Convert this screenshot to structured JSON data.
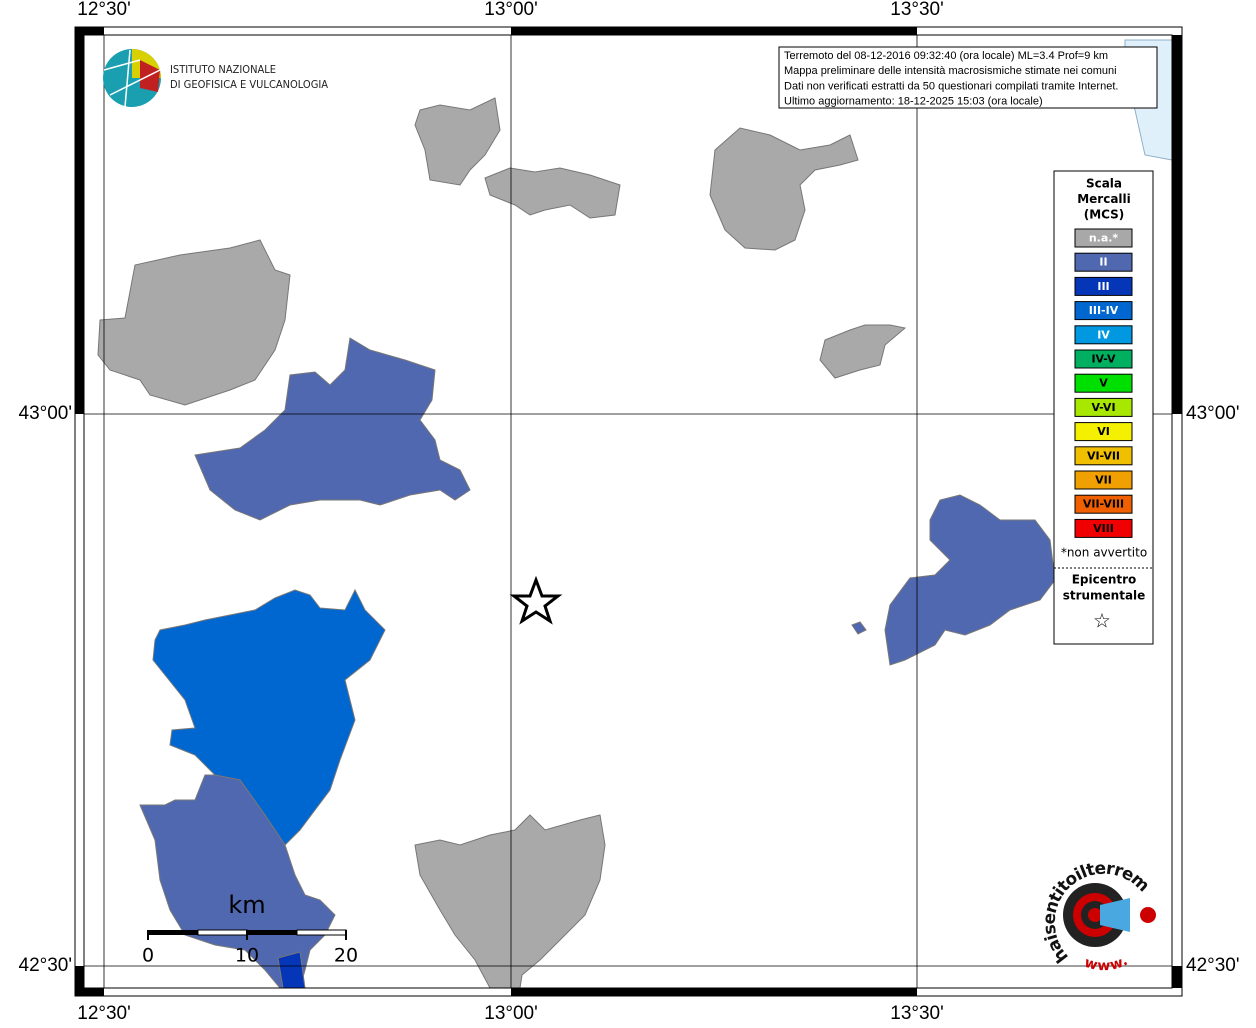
{
  "map": {
    "lon_labels": [
      "12°30'",
      "13°00'",
      "13°30'"
    ],
    "lat_labels": [
      "43°00'",
      "42°30'"
    ],
    "institute": [
      "ISTITUTO NAZIONALE",
      "DI GEOFISICA E VULCANOLOGIA"
    ],
    "info": [
      "Terremoto del 08-12-2016 09:32:40 (ora locale) ML=3.4 Prof=9 km",
      "Mappa preliminare delle intensità macrosismiche stimate nei comuni",
      "Dati non verificati estratti da 50 questionari compilati tramite Internet.",
      "Ultimo aggiornamento: 18-12-2025 15:03 (ora locale)"
    ],
    "legend": {
      "title": [
        "Scala",
        "Mercalli",
        "(MCS)"
      ],
      "classes": [
        {
          "label": "n.a.*",
          "color": "#a8a8a8"
        },
        {
          "label": "II",
          "color": "#5068b0"
        },
        {
          "label": "III",
          "color": "#0636b8"
        },
        {
          "label": "III-IV",
          "color": "#0066d0"
        },
        {
          "label": "IV",
          "color": "#0098e0"
        },
        {
          "label": "IV-V",
          "color": "#00b060"
        },
        {
          "label": "V",
          "color": "#00e000"
        },
        {
          "label": "V-VI",
          "color": "#a8e800"
        },
        {
          "label": "VI",
          "color": "#f4f000"
        },
        {
          "label": "VI-VII",
          "color": "#f0c000"
        },
        {
          "label": "VII",
          "color": "#f0a000"
        },
        {
          "label": "VII-VIII",
          "color": "#f06000"
        },
        {
          "label": "VIII",
          "color": "#f00000"
        }
      ],
      "note": "*non avvertito",
      "epicenter": [
        "Epicentro",
        "strumentale"
      ],
      "epicenter_symbol": "☆"
    },
    "scale_bar": {
      "unit": "km",
      "ticks": [
        "0",
        "10",
        "20"
      ]
    },
    "site_logo": {
      "name": "haisentitoilterremoto.it",
      "prefix": "www."
    }
  }
}
